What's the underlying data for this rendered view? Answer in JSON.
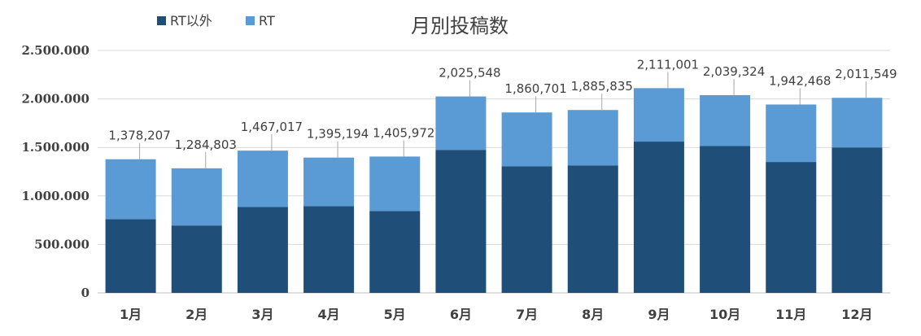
{
  "chart_data": {
    "type": "bar",
    "stacked": true,
    "title": "月別投稿数",
    "categories": [
      "1月",
      "2月",
      "3月",
      "4月",
      "5月",
      "6月",
      "7月",
      "8月",
      "9月",
      "10月",
      "11月",
      "12月"
    ],
    "series": [
      {
        "name": "RT以外",
        "color": "#1f4e79",
        "values": [
          760000,
          695000,
          885000,
          895000,
          845000,
          1475000,
          1305000,
          1315000,
          1560000,
          1515000,
          1350000,
          1500000
        ]
      },
      {
        "name": "RT",
        "color": "#5b9bd5",
        "values": [
          618207,
          589803,
          582017,
          500194,
          560972,
          550548,
          555701,
          570835,
          551001,
          524324,
          592468,
          511549
        ]
      }
    ],
    "totals": [
      1378207,
      1284803,
      1467017,
      1395194,
      1405972,
      2025548,
      1860701,
      1885835,
      2111001,
      2039324,
      1942468,
      2011549
    ],
    "total_labels": [
      "1,378,207",
      "1,284,803",
      "1,467,017",
      "1,395,194",
      "1,405,972",
      "2,025,548",
      "1,860,701",
      "1,885,835",
      "2,111,001",
      "2,039,324",
      "1,942,468",
      "2,011,549"
    ],
    "y_ticks": [
      0,
      500000,
      1000000,
      1500000,
      2000000,
      2500000
    ],
    "y_tick_labels": [
      "0",
      "500.000",
      "1.000.000",
      "1.500.000",
      "2.000.000",
      "2.500.000"
    ],
    "ylim": [
      0,
      2500000
    ],
    "legend_position": "top-left",
    "grid": true
  }
}
